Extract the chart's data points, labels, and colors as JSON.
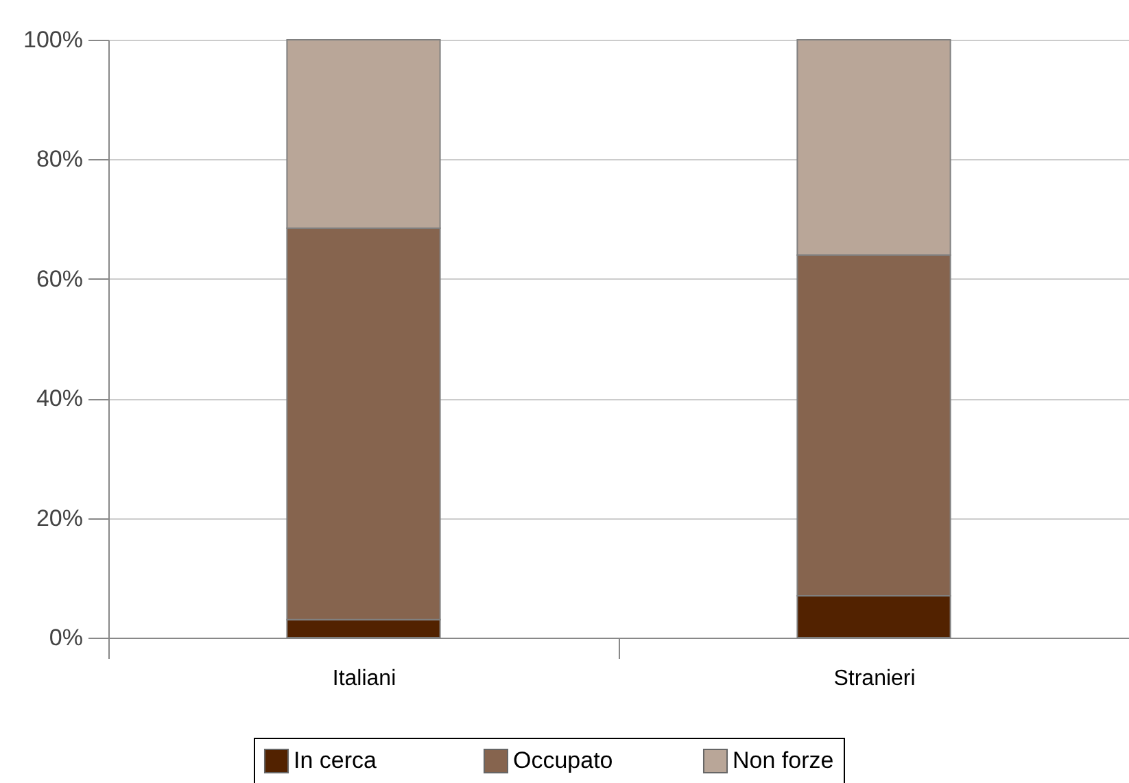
{
  "chart_data": {
    "type": "bar",
    "stacked": true,
    "categories": [
      "Italiani",
      "Stranieri"
    ],
    "series": [
      {
        "name": "In cerca",
        "color": "#522200",
        "values": [
          3,
          7
        ]
      },
      {
        "name": "Occupato",
        "color": "#86644e",
        "values": [
          65.5,
          57
        ]
      },
      {
        "name": "Non forze",
        "color": "#b9a698",
        "values": [
          31.5,
          36
        ]
      }
    ],
    "ylim": [
      0,
      100
    ],
    "yticks": [
      {
        "value": 0,
        "label": "0%"
      },
      {
        "value": 20,
        "label": "20%"
      },
      {
        "value": 40,
        "label": "40%"
      },
      {
        "value": 60,
        "label": "60%"
      },
      {
        "value": 80,
        "label": "80%"
      },
      {
        "value": 100,
        "label": "100%"
      }
    ],
    "grid": "y",
    "legend": "bottom"
  }
}
